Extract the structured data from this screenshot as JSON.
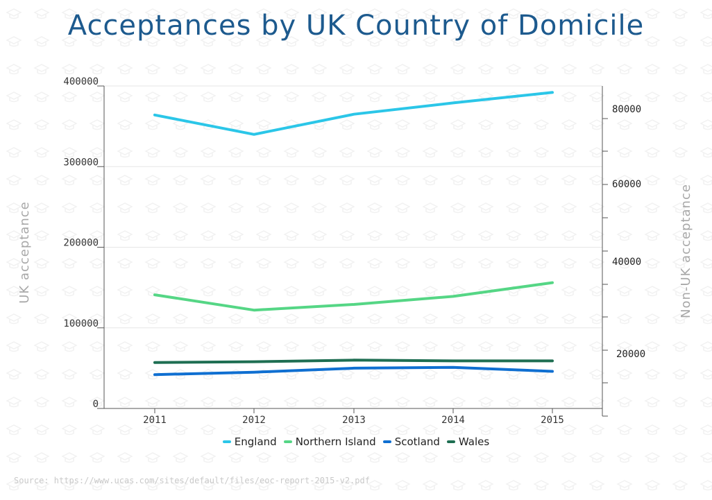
{
  "chart_data": {
    "type": "line",
    "title": "Acceptances by UK Country of Domicile",
    "categories": [
      "2011",
      "2012",
      "2013",
      "2014",
      "2015"
    ],
    "series": [
      {
        "name": "England",
        "color": "#2bc6e8",
        "values": [
          364000,
          340000,
          365000,
          379000,
          392000
        ]
      },
      {
        "name": "Northern Island",
        "color": "#55d685",
        "values": [
          141000,
          122000,
          129000,
          139000,
          156000
        ]
      },
      {
        "name": "Scotland",
        "color": "#0f6fd1",
        "values": [
          42000,
          45000,
          50000,
          51000,
          46000
        ]
      },
      {
        "name": "Wales",
        "color": "#1e6e52",
        "values": [
          57000,
          58000,
          60000,
          59000,
          59000
        ]
      }
    ],
    "y_left": {
      "label": "UK acceptance",
      "ylim": [
        0,
        400000
      ],
      "ticks": [
        0,
        100000,
        200000,
        300000,
        400000
      ],
      "tick_labels": [
        "0",
        "100000",
        "200000",
        "300000",
        "400000"
      ]
    },
    "y_right": {
      "label": "Non-UK acceptance",
      "tick_labels": [
        "80000",
        "60000",
        "40000",
        "20000"
      ]
    },
    "grid": true,
    "legend": "bottom-center"
  },
  "source": "Source: https://www.ucas.com/sites/default/files/eoc-report-2015-v2.pdf"
}
